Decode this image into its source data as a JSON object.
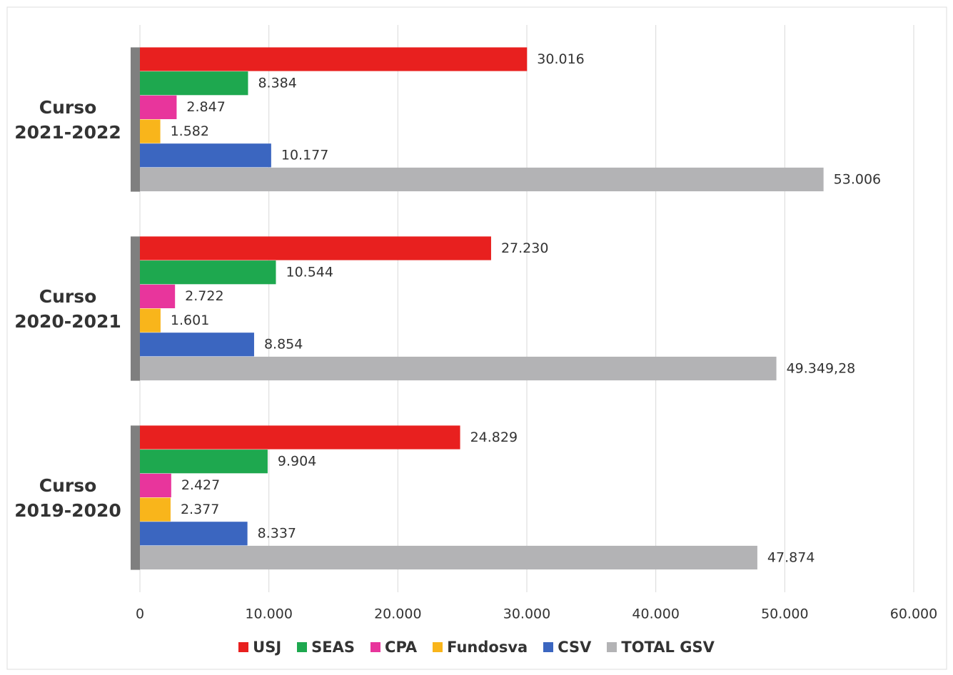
{
  "chart_data": {
    "type": "hbar",
    "categories": [
      "Curso 2021-2022",
      "Curso 2020-2021",
      "Curso 2019-2020"
    ],
    "series": [
      {
        "name": "USJ",
        "color": "#e8201f",
        "values": [
          30016,
          27230,
          24829
        ],
        "value_labels": [
          "30.016",
          "27.230",
          "24.829"
        ]
      },
      {
        "name": "SEAS",
        "color": "#1ea84f",
        "values": [
          8384,
          10544,
          9904
        ],
        "value_labels": [
          "8.384",
          "10.544",
          "9.904"
        ]
      },
      {
        "name": "CPA",
        "color": "#e8359c",
        "values": [
          2847,
          2722,
          2427
        ],
        "value_labels": [
          "2.847",
          "2.722",
          "2.427"
        ]
      },
      {
        "name": "Fundosva",
        "color": "#f9b51b",
        "values": [
          1582,
          1601,
          2377
        ],
        "value_labels": [
          "1.582",
          "1.601",
          "2.377"
        ]
      },
      {
        "name": "CSV",
        "color": "#3b66c0",
        "values": [
          10177,
          8854,
          8337
        ],
        "value_labels": [
          "10.177",
          "8.854",
          "8.337"
        ]
      },
      {
        "name": "TOTAL GSV",
        "color": "#b3b3b5",
        "values": [
          53006,
          49349.28,
          47874
        ],
        "value_labels": [
          "53.006",
          "49.349,28",
          "47.874"
        ]
      }
    ],
    "xlim": [
      0,
      60000
    ],
    "xticks": [
      0,
      {
        "value": 10000,
        "label": "10.000"
      },
      {
        "value": 20000,
        "label": "20.000"
      },
      {
        "value": 30000,
        "label": "30.000"
      },
      {
        "value": 40000,
        "label": "40.000"
      },
      {
        "value": 50000,
        "label": "50.000"
      },
      {
        "value": 60000,
        "label": "60.000"
      }
    ],
    "grid": true,
    "legend": "bottom"
  }
}
